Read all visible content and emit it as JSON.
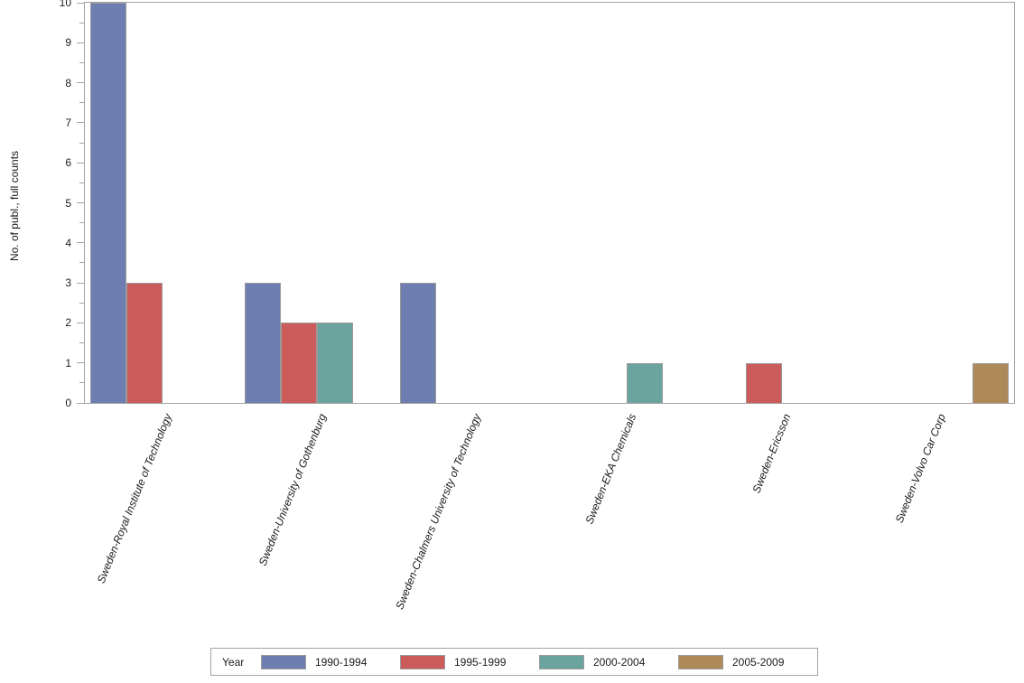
{
  "figure": {
    "background": "#ffffff",
    "axis_color": "#a4a4a4",
    "text_color": "#1a1a1a"
  },
  "chart_data": {
    "type": "bar",
    "title": "",
    "xlabel": "",
    "ylabel": "No. of publ., full counts",
    "ylim": [
      0,
      10
    ],
    "y_major_tick_step": 1,
    "y_minor_tick_step": 0.5,
    "y_tick_labels": [
      "0",
      "1",
      "2",
      "3",
      "4",
      "5",
      "6",
      "7",
      "8",
      "9",
      "10"
    ],
    "grid": false,
    "categories": [
      "Sweden-Royal Institute of Technology",
      "Sweden-University of Gothenburg",
      "Sweden-Chalmers University of Technology",
      "Sweden-EKA Chemicals",
      "Sweden-Ericsson",
      "Sweden-Volvo Car Corp"
    ],
    "series": [
      {
        "name": "1990-1994",
        "color": "#6e7eb1",
        "values": [
          10,
          3,
          3,
          0,
          0,
          0
        ]
      },
      {
        "name": "1995-1999",
        "color": "#cc5c5c",
        "values": [
          3,
          2,
          0,
          0,
          1,
          0
        ]
      },
      {
        "name": "2000-2004",
        "color": "#6ba49e",
        "values": [
          0,
          2,
          0,
          1,
          0,
          0
        ]
      },
      {
        "name": "2005-2009",
        "color": "#af8a59",
        "values": [
          0,
          0,
          0,
          0,
          0,
          1
        ]
      }
    ],
    "legend_title": "Year",
    "legend_position": "bottom"
  }
}
